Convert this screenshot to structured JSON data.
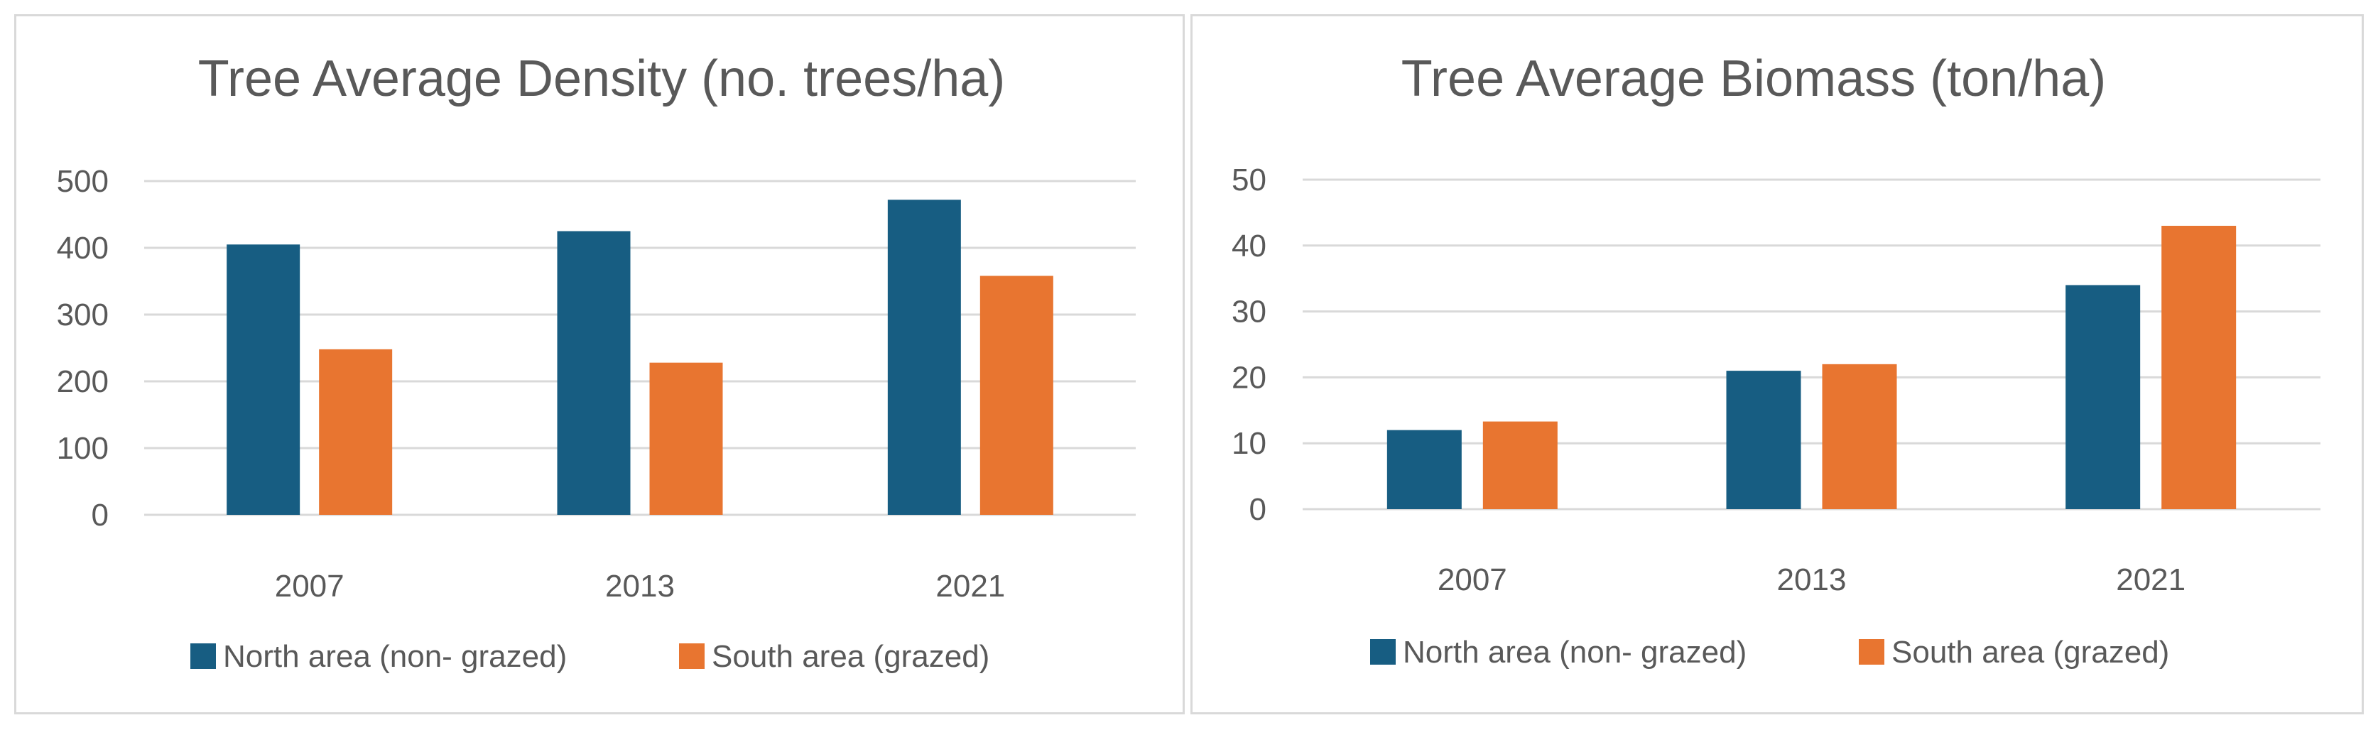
{
  "colors": {
    "north": "#175d82",
    "south": "#e87530"
  },
  "chart_data": [
    {
      "type": "bar",
      "title": "Tree Average Density (no. trees/ha)",
      "categories": [
        "2007",
        "2013",
        "2021"
      ],
      "series": [
        {
          "name": "North area (non- grazed)",
          "values": [
            405,
            425,
            472
          ]
        },
        {
          "name": "South area (grazed)",
          "values": [
            248,
            228,
            358
          ]
        }
      ],
      "yticks": [
        "0",
        "100",
        "200",
        "300",
        "400",
        "500"
      ],
      "ylim": [
        0,
        500
      ],
      "grid": true,
      "legend": "bottom"
    },
    {
      "type": "bar",
      "title": "Tree Average Biomass (ton/ha)",
      "categories": [
        "2007",
        "2013",
        "2021"
      ],
      "series": [
        {
          "name": "North area (non- grazed)",
          "values": [
            12,
            21,
            34
          ]
        },
        {
          "name": "South area (grazed)",
          "values": [
            13.3,
            22,
            43
          ]
        }
      ],
      "yticks": [
        "0",
        "10",
        "20",
        "30",
        "40",
        "50"
      ],
      "ylim": [
        0,
        50
      ],
      "grid": true,
      "legend": "bottom"
    }
  ]
}
